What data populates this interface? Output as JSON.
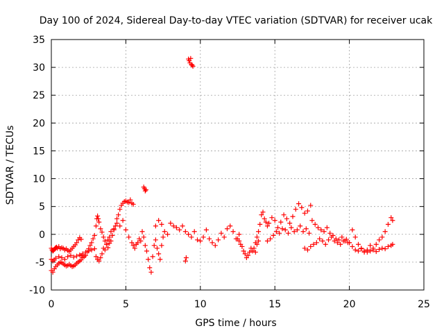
{
  "chart_data": {
    "type": "scatter",
    "title": "Day 100 of 2024, Sidereal Day-to-day VTEC variation (SDTVAR) for receiver ucak",
    "xlabel": "GPS time / hours",
    "ylabel": "SDTVAR / TECUs",
    "xlim": [
      0,
      25
    ],
    "ylim": [
      -10,
      35
    ],
    "xticks": [
      0,
      5,
      10,
      15,
      20,
      25
    ],
    "yticks": [
      -10,
      -5,
      0,
      5,
      10,
      15,
      20,
      25,
      30,
      35
    ],
    "grid": true,
    "marker": "+",
    "color": "#ff0000",
    "series": [
      {
        "name": "SDTVAR",
        "x": [
          0.0,
          0.05,
          0.1,
          0.15,
          0.2,
          0.25,
          0.3,
          0.35,
          0.4,
          0.5,
          0.6,
          0.7,
          0.8,
          0.9,
          1.0,
          1.1,
          1.2,
          1.3,
          1.4,
          1.5,
          1.6,
          1.7,
          1.8,
          1.9,
          2.0,
          0.0,
          0.1,
          0.2,
          0.3,
          0.4,
          0.5,
          0.6,
          0.7,
          0.8,
          0.9,
          1.0,
          1.1,
          1.2,
          1.3,
          1.4,
          1.5,
          1.6,
          1.7,
          1.8,
          1.9,
          2.0,
          0.0,
          0.1,
          0.2,
          0.3,
          0.5,
          0.7,
          0.9,
          1.1,
          1.3,
          1.5,
          1.7,
          1.9,
          2.1,
          2.3,
          2.5,
          2.7,
          2.9,
          2.0,
          2.1,
          2.2,
          2.3,
          2.4,
          2.5,
          2.6,
          2.7,
          2.8,
          2.9,
          3.0,
          3.05,
          3.1,
          3.15,
          3.2,
          3.3,
          3.4,
          3.5,
          3.6,
          3.7,
          3.8,
          3.9,
          4.0,
          4.1,
          4.2,
          4.3,
          4.4,
          4.5,
          4.6,
          4.7,
          4.8,
          4.9,
          5.0,
          5.1,
          5.2,
          5.3,
          5.4,
          5.5,
          3.0,
          3.1,
          3.2,
          3.3,
          3.4,
          3.5,
          3.6,
          3.7,
          3.8,
          3.9,
          4.0,
          4.2,
          4.4,
          4.6,
          4.8,
          5.0,
          5.2,
          5.4,
          5.5,
          5.6,
          5.7,
          5.8,
          5.9,
          6.0,
          6.1,
          6.2,
          6.3,
          6.4,
          6.5,
          6.6,
          6.7,
          6.8,
          6.9,
          7.0,
          7.1,
          7.2,
          7.3,
          7.4,
          7.5,
          6.2,
          6.25,
          6.3,
          6.35,
          7.0,
          7.2,
          7.4,
          7.6,
          7.8,
          8.0,
          8.2,
          8.4,
          8.6,
          8.8,
          9.0,
          9.2,
          9.4,
          9.6,
          9.8,
          10.0,
          10.2,
          10.4,
          10.6,
          10.8,
          11.0,
          11.2,
          11.4,
          11.6,
          11.8,
          12.0,
          12.2,
          12.4,
          12.6,
          9.0,
          9.05,
          9.2,
          9.25,
          9.3,
          9.35,
          9.4,
          9.45,
          9.5,
          12.5,
          12.6,
          12.7,
          12.8,
          12.9,
          13.0,
          13.1,
          13.2,
          13.3,
          13.4,
          13.5,
          13.6,
          13.7,
          13.8,
          13.9,
          13.7,
          13.8,
          13.9,
          14.0,
          14.1,
          14.2,
          14.3,
          14.4,
          14.5,
          14.6,
          14.8,
          15.0,
          15.2,
          15.4,
          15.6,
          15.8,
          16.0,
          16.2,
          16.4,
          16.6,
          16.8,
          17.0,
          17.2,
          17.4,
          14.5,
          14.7,
          14.9,
          15.1,
          15.3,
          15.5,
          15.7,
          15.9,
          16.1,
          16.3,
          16.5,
          16.7,
          16.9,
          17.1,
          17.3,
          17.0,
          17.2,
          17.4,
          17.6,
          17.8,
          18.0,
          18.2,
          18.4,
          18.6,
          18.8,
          19.0,
          19.2,
          19.4,
          19.6,
          19.8,
          20.0,
          17.5,
          17.7,
          17.9,
          18.1,
          18.3,
          18.5,
          18.7,
          18.9,
          19.1,
          19.3,
          19.5,
          19.7,
          19.9,
          20.0,
          20.2,
          20.4,
          20.6,
          20.8,
          21.0,
          21.2,
          21.4,
          21.6,
          21.8,
          22.0,
          22.2,
          22.4,
          22.6,
          22.8,
          22.9,
          20.2,
          20.4,
          20.6,
          20.8,
          21.0,
          21.2,
          21.4,
          21.6,
          21.8,
          22.0,
          22.2,
          22.4,
          22.6,
          22.8,
          22.9
        ],
        "y": [
          -2.5,
          -2.8,
          -3.0,
          -2.9,
          -2.7,
          -2.5,
          -2.4,
          -2.3,
          -2.5,
          -2.2,
          -2.6,
          -2.4,
          -2.5,
          -2.8,
          -2.6,
          -2.9,
          -3.1,
          -2.8,
          -2.5,
          -2.2,
          -1.9,
          -1.5,
          -1.0,
          -0.6,
          -0.9,
          -6.5,
          -6.8,
          -6.2,
          -5.8,
          -5.5,
          -5.2,
          -5.0,
          -5.1,
          -5.3,
          -5.5,
          -5.7,
          -5.6,
          -5.4,
          -5.6,
          -5.8,
          -5.7,
          -5.5,
          -5.2,
          -5.0,
          -4.8,
          -4.6,
          -4.5,
          -4.8,
          -4.6,
          -4.3,
          -4.0,
          -4.2,
          -4.5,
          -4.0,
          -3.8,
          -4.1,
          -3.9,
          -3.7,
          -3.5,
          -3.2,
          -3.0,
          -2.8,
          -2.6,
          -3.8,
          -4.2,
          -4.0,
          -3.8,
          -3.2,
          -2.6,
          -2.0,
          -1.5,
          -0.8,
          -0.2,
          1.5,
          2.8,
          3.3,
          2.8,
          2.2,
          1.0,
          0.4,
          -0.5,
          -1.2,
          -1.8,
          -2.4,
          -1.6,
          -1.2,
          -0.2,
          1.0,
          1.5,
          2.8,
          3.5,
          4.5,
          5.2,
          5.6,
          5.9,
          6.0,
          5.8,
          5.7,
          6.2,
          5.6,
          5.4,
          -4.0,
          -4.5,
          -4.8,
          -4.2,
          -3.5,
          -2.5,
          -2.8,
          -1.8,
          -1.0,
          -0.5,
          0.5,
          0.8,
          2.0,
          1.5,
          2.5,
          0.8,
          -0.5,
          -1.5,
          -2.0,
          -2.5,
          -1.8,
          -1.5,
          -0.8,
          -1.2,
          0.5,
          -0.5,
          -2.0,
          -3.0,
          -4.5,
          -6.0,
          -6.8,
          -4.0,
          -2.0,
          -1.0,
          -2.5,
          -3.5,
          -4.5,
          -2.0,
          -0.5,
          8.5,
          8.2,
          7.8,
          8.0,
          1.5,
          2.5,
          1.8,
          0.5,
          0.0,
          2.0,
          1.5,
          1.2,
          0.8,
          1.5,
          0.5,
          0.0,
          -0.5,
          0.5,
          -1.0,
          -1.2,
          -0.5,
          0.8,
          -0.8,
          -1.5,
          -2.0,
          -1.0,
          0.2,
          -0.5,
          1.0,
          1.5,
          0.5,
          -0.8,
          0.0,
          -4.8,
          -4.2,
          31.5,
          31.2,
          30.8,
          31.6,
          30.5,
          30.4,
          30.2,
          -0.8,
          -1.2,
          -1.8,
          -2.2,
          -3.0,
          -3.5,
          -4.2,
          -3.8,
          -3.2,
          -2.5,
          -3.0,
          -2.5,
          -3.2,
          -1.8,
          -1.2,
          -1.5,
          -0.5,
          0.5,
          1.8,
          3.5,
          4.0,
          2.8,
          2.2,
          1.5,
          2.0,
          3.0,
          2.5,
          1.2,
          2.2,
          3.5,
          2.8,
          2.0,
          3.2,
          4.5,
          5.5,
          4.8,
          3.8,
          4.2,
          5.2,
          -1.2,
          -0.8,
          -0.2,
          0.5,
          0.2,
          1.0,
          0.8,
          0.2,
          1.2,
          0.5,
          0.8,
          1.5,
          0.5,
          1.0,
          0.2,
          -2.5,
          -2.8,
          -2.2,
          -1.8,
          -1.5,
          -0.8,
          -1.2,
          -1.8,
          -1.0,
          -0.5,
          -1.2,
          -1.5,
          -1.8,
          -1.2,
          -0.9,
          -1.5,
          2.5,
          1.8,
          1.2,
          0.8,
          0.5,
          1.2,
          0.2,
          -0.2,
          -0.8,
          -1.0,
          -0.5,
          -1.2,
          -1.5,
          -1.5,
          -2.2,
          -2.8,
          -3.0,
          -2.5,
          -3.2,
          -2.8,
          -2.0,
          -2.5,
          -1.8,
          -1.0,
          -0.5,
          0.5,
          1.8,
          3.0,
          2.5,
          0.8,
          -0.5,
          -1.8,
          -2.6,
          -3.0,
          -3.2,
          -3.0,
          -2.8,
          -3.1,
          -2.7,
          -2.5,
          -2.6,
          -2.2,
          -2.0,
          -1.8
        ]
      }
    ]
  }
}
